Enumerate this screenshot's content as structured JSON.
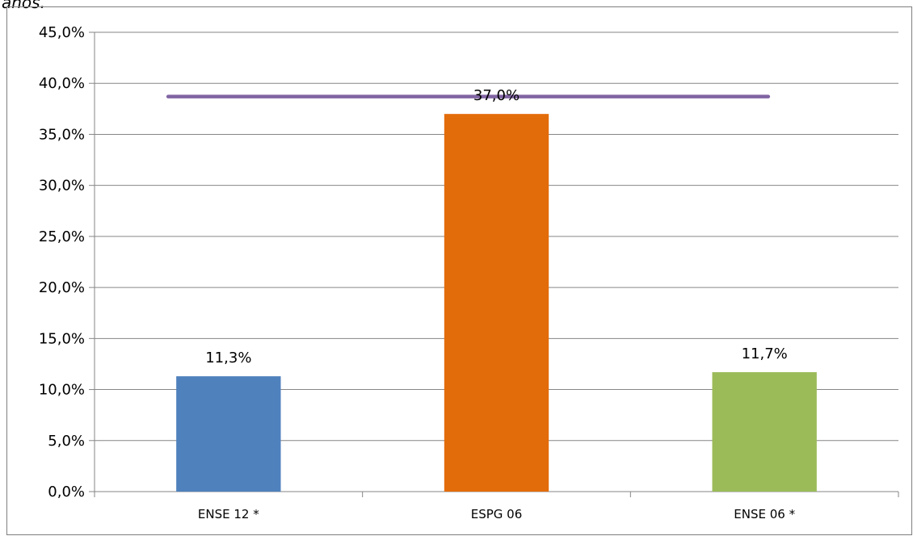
{
  "header": {
    "partial_text": "años."
  },
  "chart_data": {
    "type": "bar",
    "title": "",
    "xlabel": "",
    "ylabel": "",
    "categories": [
      "ENSE 12 *",
      "ESPG 06",
      "ENSE 06 *"
    ],
    "values": [
      11.3,
      37.0,
      11.7
    ],
    "data_labels": [
      "11,3%",
      "37,0%",
      "11,7%"
    ],
    "colors": [
      "#4f81bd",
      "#e36c0a",
      "#9bbb59"
    ],
    "ylim": [
      0,
      45
    ],
    "y_ticks": [
      0,
      5,
      10,
      15,
      20,
      25,
      30,
      35,
      40,
      45
    ],
    "y_tick_labels": [
      "0,0%",
      "5,0%",
      "10,0%",
      "15,0%",
      "20,0%",
      "25,0%",
      "30,0%",
      "35,0%",
      "40,0%",
      "45,0%"
    ],
    "reference_line": {
      "value": 38.7,
      "color": "#8064a2"
    },
    "grid": true,
    "legend": "none"
  }
}
